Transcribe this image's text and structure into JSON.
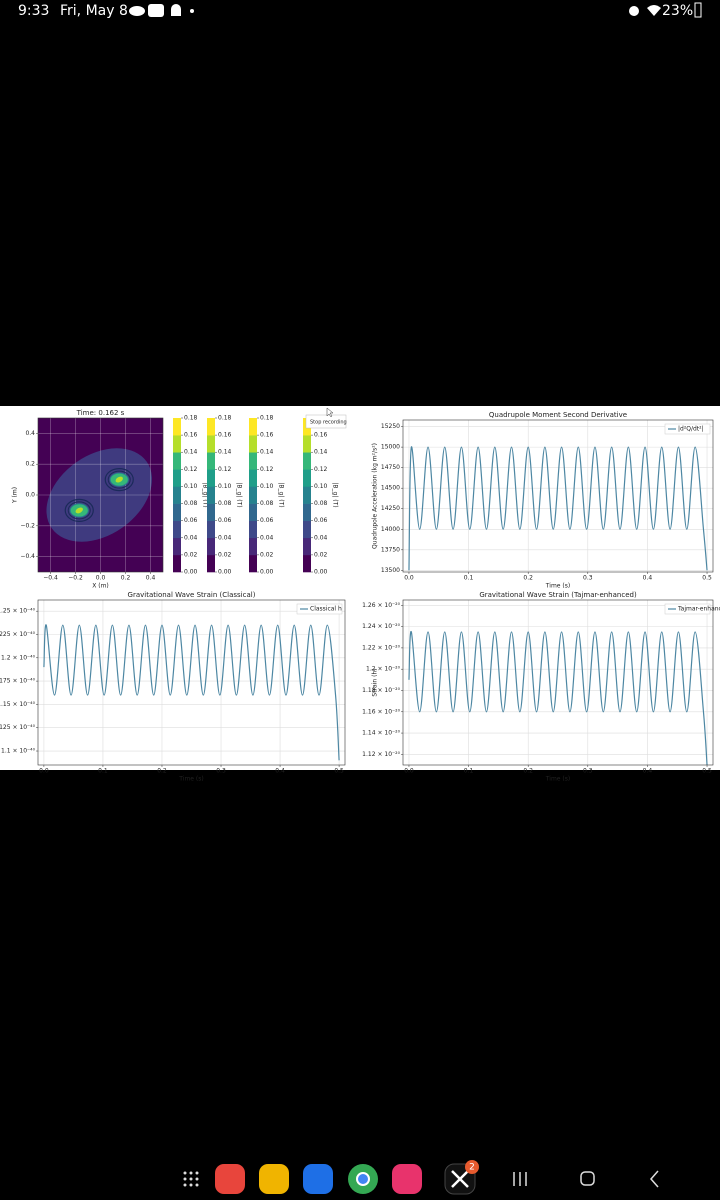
{
  "status_bar": {
    "time": "9:33",
    "date": "Fri, May 8",
    "battery": "23%"
  },
  "tooltip": "Stop recording",
  "taskbar": {
    "badge": "2"
  },
  "chart_data": [
    {
      "type": "contour",
      "title": "Time: 0.162 s",
      "xlabel": "X (m)",
      "ylabel": "Y (m)",
      "xlim": [
        -0.5,
        0.5
      ],
      "ylim": [
        -0.5,
        0.5
      ],
      "xticks": [
        {
          "value": -0.4,
          "label": "−0.4"
        },
        {
          "value": -0.2,
          "label": "−0.2"
        },
        {
          "value": 0,
          "label": "0.0"
        },
        0.2,
        0.4
      ],
      "yticks": [
        {
          "value": -0.4,
          "label": "−0.4"
        },
        {
          "value": -0.2,
          "label": "−0.2"
        },
        {
          "value": 0,
          "label": "0.0"
        },
        0.2,
        0.4
      ],
      "grid": true,
      "sources": [
        {
          "x": -0.17,
          "y": -0.1
        },
        {
          "x": 0.15,
          "y": 0.1
        }
      ],
      "colorbars": [
        {
          "label": "|B_g| (T)"
        },
        {
          "label": "|B_g| (T)"
        },
        {
          "label": "|B_g| (T)"
        },
        {
          "label": "|B_g| (T)"
        }
      ],
      "clim": [
        0,
        0.18
      ],
      "cticks": [
        {
          "value": 0,
          "label": "0.00"
        },
        0.02,
        0.04,
        0.06,
        0.08,
        {
          "value": 0.1,
          "label": "0.10"
        },
        0.12,
        0.14,
        0.16,
        0.18
      ]
    },
    {
      "type": "line",
      "title": "Quadrupole Moment Second Derivative",
      "xlabel": "Time (s)",
      "ylabel": "Quadrupole Acceleration (kg m²/s²)",
      "xlim": [
        -0.01,
        0.51
      ],
      "ylim": [
        13480,
        15330
      ],
      "xticks": [
        {
          "value": 0,
          "label": "0.0"
        },
        0.1,
        0.2,
        0.3,
        0.4,
        0.5
      ],
      "yticks": [
        13500,
        13750,
        14000,
        14250,
        14500,
        14750,
        15000,
        15250
      ],
      "grid": true,
      "legend": "upper right",
      "x": [
        0,
        0.004,
        0.018,
        0.032,
        0.046,
        0.06,
        0.074,
        0.088,
        0.102,
        0.116,
        0.13,
        0.144,
        0.158,
        0.172,
        0.186,
        0.2,
        0.214,
        0.228,
        0.242,
        0.256,
        0.27,
        0.284,
        0.298,
        0.312,
        0.326,
        0.34,
        0.354,
        0.368,
        0.382,
        0.396,
        0.41,
        0.424,
        0.438,
        0.452,
        0.466,
        0.48,
        0.494,
        0.5
      ],
      "series": [
        {
          "name": "|d²Q/dt²|",
          "color": "#4d87a3",
          "values": [
            13500,
            15000,
            14000,
            15000,
            14000,
            15000,
            14000,
            15000,
            14000,
            15000,
            14000,
            15000,
            14000,
            15000,
            14000,
            15000,
            14000,
            15000,
            14000,
            15000,
            14000,
            15000,
            14000,
            15000,
            14000,
            15000,
            14000,
            15000,
            14000,
            15000,
            14000,
            15000,
            14000,
            15000,
            14000,
            15000,
            14000,
            13500
          ]
        }
      ]
    },
    {
      "type": "line",
      "title": "Gravitational Wave Strain (Classical)",
      "xlabel": "Time (s)",
      "xlim": [
        -0.01,
        0.51
      ],
      "ylim": [
        1.085e-40,
        1.262e-40
      ],
      "xticks": [
        {
          "value": 0,
          "label": "0.0"
        },
        0.1,
        0.2,
        0.3,
        0.4,
        0.5
      ],
      "yticks": [
        {
          "value": 1.1e-40,
          "label": "1.1 × 10⁻⁴⁰"
        },
        {
          "value": 1.125e-40,
          "label": "1.125 × 10⁻⁴⁰"
        },
        {
          "value": 1.15e-40,
          "label": "1.15 × 10⁻⁴⁰"
        },
        {
          "value": 1.175e-40,
          "label": "1.175 × 10⁻⁴⁰"
        },
        {
          "value": 1.2e-40,
          "label": "1.2 × 10⁻⁴⁰"
        },
        {
          "value": 1.225e-40,
          "label": "1.225 × 10⁻⁴⁰"
        },
        {
          "value": 1.25e-40,
          "label": "1.25 × 10⁻⁴⁰"
        }
      ],
      "grid": true,
      "legend": "upper right",
      "x": [
        0,
        0.004,
        0.018,
        0.032,
        0.046,
        0.06,
        0.074,
        0.088,
        0.102,
        0.116,
        0.13,
        0.144,
        0.158,
        0.172,
        0.186,
        0.2,
        0.214,
        0.228,
        0.242,
        0.256,
        0.27,
        0.284,
        0.298,
        0.312,
        0.326,
        0.34,
        0.354,
        0.368,
        0.382,
        0.396,
        0.41,
        0.424,
        0.438,
        0.452,
        0.466,
        0.48,
        0.494,
        0.5
      ],
      "series": [
        {
          "name": "Classical h",
          "color": "#4d87a3",
          "values": [
            1.19e-40,
            1.235e-40,
            1.16e-40,
            1.235e-40,
            1.16e-40,
            1.235e-40,
            1.16e-40,
            1.235e-40,
            1.16e-40,
            1.235e-40,
            1.16e-40,
            1.235e-40,
            1.16e-40,
            1.235e-40,
            1.16e-40,
            1.235e-40,
            1.16e-40,
            1.235e-40,
            1.16e-40,
            1.235e-40,
            1.16e-40,
            1.235e-40,
            1.16e-40,
            1.235e-40,
            1.16e-40,
            1.235e-40,
            1.16e-40,
            1.235e-40,
            1.16e-40,
            1.235e-40,
            1.16e-40,
            1.235e-40,
            1.16e-40,
            1.235e-40,
            1.16e-40,
            1.235e-40,
            1.16e-40,
            1.09e-40
          ]
        }
      ]
    },
    {
      "type": "line",
      "title": "Gravitational Wave Strain (Tajmar-enhanced)",
      "xlabel": "Time (s)",
      "ylabel": "Strain (h)",
      "xlim": [
        -0.01,
        0.51
      ],
      "ylim": [
        1.11e-20,
        1.265e-20
      ],
      "xticks": [
        {
          "value": 0,
          "label": "0.0"
        },
        0.1,
        0.2,
        0.3,
        0.4,
        0.5
      ],
      "yticks": [
        {
          "value": 1.12e-20,
          "label": "1.12 × 10⁻²⁰"
        },
        {
          "value": 1.14e-20,
          "label": "1.14 × 10⁻²⁰"
        },
        {
          "value": 1.16e-20,
          "label": "1.16 × 10⁻²⁰"
        },
        {
          "value": 1.18e-20,
          "label": "1.18 × 10⁻²⁰"
        },
        {
          "value": 1.2e-20,
          "label": "1.2 × 10⁻²⁰"
        },
        {
          "value": 1.22e-20,
          "label": "1.22 × 10⁻²⁰"
        },
        {
          "value": 1.24e-20,
          "label": "1.24 × 10⁻²⁰"
        },
        {
          "value": 1.26e-20,
          "label": "1.26 × 10⁻²⁰"
        }
      ],
      "grid": true,
      "legend": "upper right",
      "x": [
        0,
        0.004,
        0.018,
        0.032,
        0.046,
        0.06,
        0.074,
        0.088,
        0.102,
        0.116,
        0.13,
        0.144,
        0.158,
        0.172,
        0.186,
        0.2,
        0.214,
        0.228,
        0.242,
        0.256,
        0.27,
        0.284,
        0.298,
        0.312,
        0.326,
        0.34,
        0.354,
        0.368,
        0.382,
        0.396,
        0.41,
        0.424,
        0.438,
        0.452,
        0.466,
        0.48,
        0.494,
        0.5
      ],
      "series": [
        {
          "name": "Tajmar-enhanced h",
          "color": "#4d87a3",
          "values": [
            1.19e-20,
            1.235e-20,
            1.16e-20,
            1.235e-20,
            1.16e-20,
            1.235e-20,
            1.16e-20,
            1.235e-20,
            1.16e-20,
            1.235e-20,
            1.16e-20,
            1.235e-20,
            1.16e-20,
            1.235e-20,
            1.16e-20,
            1.235e-20,
            1.16e-20,
            1.235e-20,
            1.16e-20,
            1.235e-20,
            1.16e-20,
            1.235e-20,
            1.16e-20,
            1.235e-20,
            1.16e-20,
            1.235e-20,
            1.16e-20,
            1.235e-20,
            1.16e-20,
            1.235e-20,
            1.16e-20,
            1.235e-20,
            1.16e-20,
            1.235e-20,
            1.16e-20,
            1.235e-20,
            1.16e-20,
            1.11e-20
          ]
        }
      ]
    }
  ]
}
